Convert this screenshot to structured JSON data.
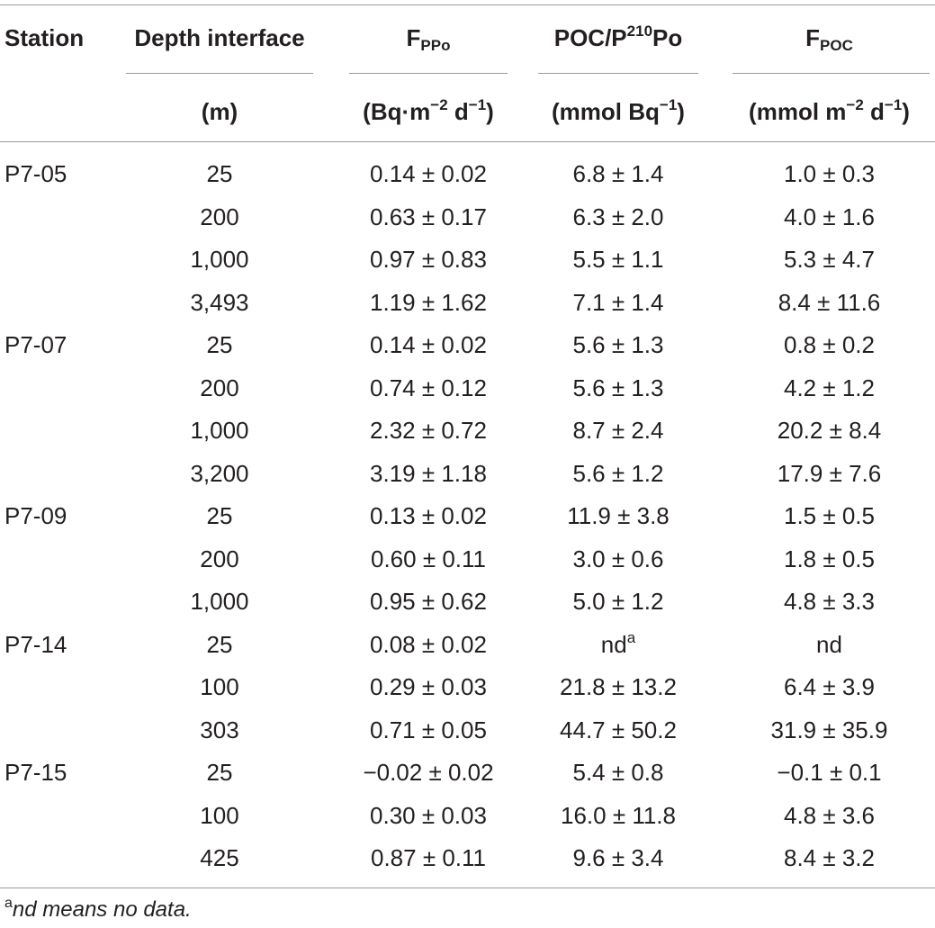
{
  "headers": {
    "station": "Station",
    "depth": "Depth interface",
    "depth_unit": "(m)",
    "fppo_base": "F",
    "fppo_sub": "PPo",
    "fppo_unit_a": "(Bq·m",
    "fppo_unit_sup1": "−2",
    "fppo_unit_b": " d",
    "fppo_unit_sup2": "−1",
    "fppo_unit_c": ")",
    "ratio_a": "POC/P",
    "ratio_sup": "210",
    "ratio_b": "Po",
    "ratio_unit_a": "(mmol Bq",
    "ratio_unit_sup": "−1",
    "ratio_unit_b": ")",
    "fpoc_base": "F",
    "fpoc_sub": "POC",
    "fpoc_unit_a": "(mmol m",
    "fpoc_unit_sup1": "−2",
    "fpoc_unit_b": " d",
    "fpoc_unit_sup2": "−1",
    "fpoc_unit_c": ")"
  },
  "rows": [
    {
      "station": "P7-05",
      "depth": "25",
      "fppo": "0.14 ± 0.02",
      "ratio": "6.8 ± 1.4",
      "ratio_sup": "",
      "fpoc": "1.0 ± 0.3"
    },
    {
      "station": "",
      "depth": "200",
      "fppo": "0.63 ± 0.17",
      "ratio": "6.3 ± 2.0",
      "ratio_sup": "",
      "fpoc": "4.0 ± 1.6"
    },
    {
      "station": "",
      "depth": "1,000",
      "fppo": "0.97 ± 0.83",
      "ratio": "5.5 ± 1.1",
      "ratio_sup": "",
      "fpoc": "5.3 ± 4.7"
    },
    {
      "station": "",
      "depth": "3,493",
      "fppo": "1.19 ± 1.62",
      "ratio": "7.1 ± 1.4",
      "ratio_sup": "",
      "fpoc": "8.4 ± 11.6"
    },
    {
      "station": "P7-07",
      "depth": "25",
      "fppo": "0.14 ± 0.02",
      "ratio": "5.6 ± 1.3",
      "ratio_sup": "",
      "fpoc": "0.8 ± 0.2"
    },
    {
      "station": "",
      "depth": "200",
      "fppo": "0.74 ± 0.12",
      "ratio": "5.6 ± 1.3",
      "ratio_sup": "",
      "fpoc": "4.2 ± 1.2"
    },
    {
      "station": "",
      "depth": "1,000",
      "fppo": "2.32 ± 0.72",
      "ratio": "8.7 ± 2.4",
      "ratio_sup": "",
      "fpoc": "20.2 ± 8.4"
    },
    {
      "station": "",
      "depth": "3,200",
      "fppo": "3.19 ± 1.18",
      "ratio": "5.6 ± 1.2",
      "ratio_sup": "",
      "fpoc": "17.9 ± 7.6"
    },
    {
      "station": "P7-09",
      "depth": "25",
      "fppo": "0.13 ± 0.02",
      "ratio": "11.9 ± 3.8",
      "ratio_sup": "",
      "fpoc": "1.5 ± 0.5"
    },
    {
      "station": "",
      "depth": "200",
      "fppo": "0.60 ± 0.11",
      "ratio": "3.0 ± 0.6",
      "ratio_sup": "",
      "fpoc": "1.8 ± 0.5"
    },
    {
      "station": "",
      "depth": "1,000",
      "fppo": "0.95 ± 0.62",
      "ratio": "5.0 ± 1.2",
      "ratio_sup": "",
      "fpoc": "4.8 ± 3.3"
    },
    {
      "station": "P7-14",
      "depth": "25",
      "fppo": "0.08 ± 0.02",
      "ratio": "nd",
      "ratio_sup": "a",
      "fpoc": "nd"
    },
    {
      "station": "",
      "depth": "100",
      "fppo": "0.29 ± 0.03",
      "ratio": "21.8 ± 13.2",
      "ratio_sup": "",
      "fpoc": "6.4 ± 3.9"
    },
    {
      "station": "",
      "depth": "303",
      "fppo": "0.71 ± 0.05",
      "ratio": "44.7 ± 50.2",
      "ratio_sup": "",
      "fpoc": "31.9 ± 35.9"
    },
    {
      "station": "P7-15",
      "depth": "25",
      "fppo": "−0.02 ± 0.02",
      "ratio": "5.4 ± 0.8",
      "ratio_sup": "",
      "fpoc": "−0.1 ± 0.1"
    },
    {
      "station": "",
      "depth": "100",
      "fppo": "0.30 ± 0.03",
      "ratio": "16.0 ± 11.8",
      "ratio_sup": "",
      "fpoc": "4.8 ± 3.6"
    },
    {
      "station": "",
      "depth": "425",
      "fppo": "0.87 ± 0.11",
      "ratio": "9.6 ± 3.4",
      "ratio_sup": "",
      "fpoc": "8.4 ± 3.2"
    }
  ],
  "footnote": {
    "marker": "a",
    "text": "nd means no data."
  }
}
